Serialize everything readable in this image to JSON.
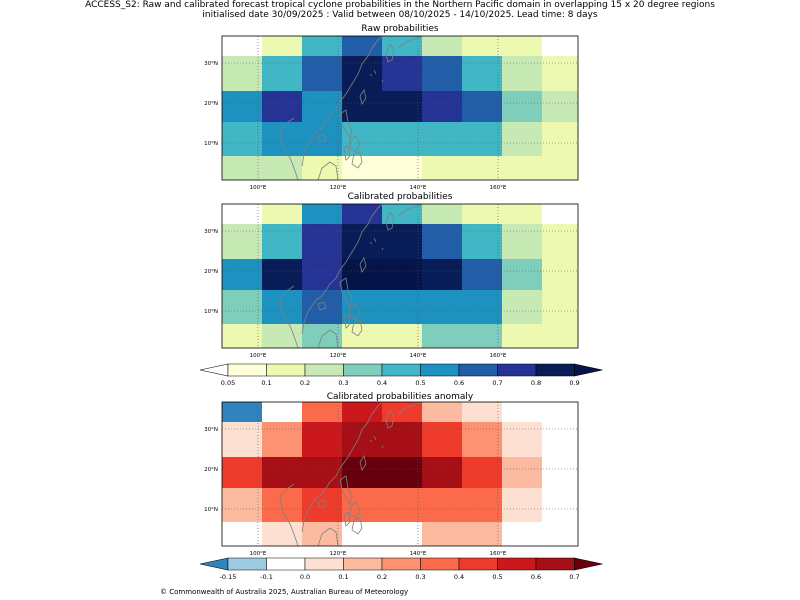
{
  "header": {
    "line1": "ACCESS_S2: Raw and calibrated forecast tropical cyclone probabilities in the Northern Pacific domain in overlapping 15 x 20 degree regions",
    "line2": "initialised date 30/09/2025 :  Valid between 08/10/2025 - 14/10/2025. Lead time: 8 days"
  },
  "maps": [
    {
      "title": "Raw probabilities",
      "scale": "prob",
      "xticks": [
        "100°E",
        "120°E",
        "140°E",
        "160°E"
      ],
      "yticks": [
        "30°N",
        "20°N",
        "10°N"
      ],
      "grid": [
        [
          -1,
          0.15,
          0.45,
          0.65,
          0.45,
          0.25,
          0.15,
          0.15
        ],
        [
          0.25,
          0.45,
          0.65,
          0.85,
          0.75,
          0.65,
          0.45,
          0.25,
          0.15
        ],
        [
          0.55,
          0.75,
          0.55,
          0.85,
          0.85,
          0.75,
          0.65,
          0.35,
          0.25
        ],
        [
          0.45,
          0.55,
          0.55,
          0.45,
          0.45,
          0.45,
          0.45,
          0.25,
          0.15
        ],
        [
          0.25,
          0.25,
          0.15,
          0.05,
          0.05,
          0.15,
          0.15,
          0.15,
          0.15
        ]
      ]
    },
    {
      "title": "Calibrated probabilities",
      "scale": "prob",
      "xticks": [
        "100°E",
        "120°E",
        "140°E",
        "160°E"
      ],
      "yticks": [
        "30°N",
        "20°N",
        "10°N"
      ],
      "grid": [
        [
          -1,
          0.15,
          0.55,
          0.75,
          0.45,
          0.25,
          0.15,
          0.15
        ],
        [
          0.25,
          0.45,
          0.75,
          0.85,
          0.85,
          0.65,
          0.45,
          0.25,
          0.15
        ],
        [
          0.55,
          0.85,
          0.75,
          0.95,
          0.95,
          0.85,
          0.65,
          0.35,
          0.15
        ],
        [
          0.35,
          0.55,
          0.65,
          0.55,
          0.55,
          0.55,
          0.55,
          0.25,
          0.15
        ],
        [
          0.15,
          0.25,
          0.35,
          0.15,
          0.15,
          0.35,
          0.35,
          0.15,
          0.15
        ]
      ]
    },
    {
      "title": "Calibrated probabilities anomaly",
      "scale": "anom",
      "xticks": [
        "100°E",
        "120°E",
        "140°E",
        "160°E"
      ],
      "yticks": [
        "30°N",
        "20°N",
        "10°N"
      ],
      "grid": [
        [
          -0.2,
          -0.05,
          0.35,
          0.55,
          0.45,
          0.15,
          0.05,
          -0.05
        ],
        [
          0.05,
          0.25,
          0.55,
          0.65,
          0.65,
          0.45,
          0.25,
          0.05,
          -0.05
        ],
        [
          0.45,
          0.65,
          0.65,
          0.75,
          0.75,
          0.65,
          0.45,
          0.15,
          -0.05
        ],
        [
          0.15,
          0.35,
          0.45,
          0.35,
          0.35,
          0.35,
          0.35,
          0.05,
          -0.05
        ],
        [
          -0.05,
          0.05,
          0.15,
          -0.05,
          -0.05,
          0.15,
          0.15,
          -0.05,
          -0.05
        ]
      ]
    }
  ],
  "colorbars": {
    "prob": {
      "labels": [
        "0.05",
        "0.1",
        "0.2",
        "0.3",
        "0.4",
        "0.5",
        "0.6",
        "0.7",
        "0.8",
        "0.9"
      ],
      "colors": [
        "#ffffd9",
        "#edf8b1",
        "#c7e9b4",
        "#7fcdbb",
        "#41b6c4",
        "#1d91c0",
        "#225ea8",
        "#253494",
        "#081d58"
      ],
      "under": "#ffffff",
      "over": "#041348"
    },
    "anom": {
      "labels": [
        "-0.15",
        "-0.1",
        "0.0",
        "0.1",
        "0.2",
        "0.3",
        "0.4",
        "0.5",
        "0.6",
        "0.7"
      ],
      "colors": [
        "#9ecae1",
        "#ffffff",
        "#fee0d2",
        "#fcbba1",
        "#fc9272",
        "#fb6a4a",
        "#ef3b2c",
        "#cb181d",
        "#a50f15"
      ],
      "under": "#3182bd",
      "over": "#67000d"
    }
  },
  "footer": "© Commonwealth of Australia 2025, Australian Bureau of Meteorology"
}
